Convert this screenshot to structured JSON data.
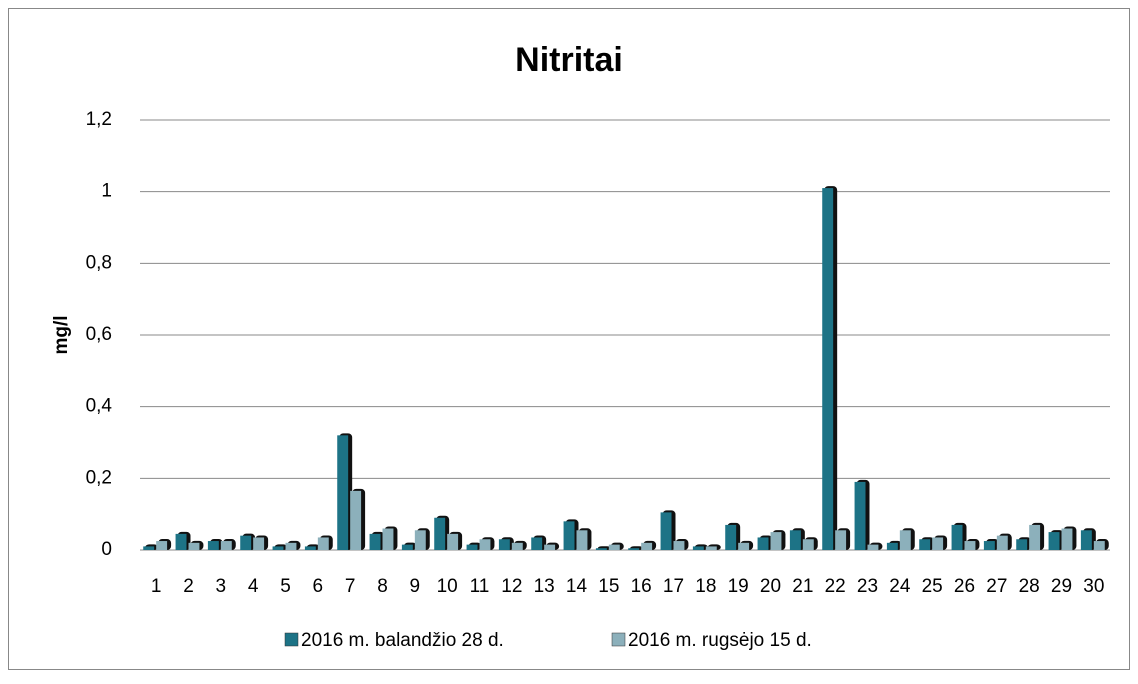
{
  "chart_data": {
    "type": "bar",
    "title": "Nitritai",
    "y_label": "mg/l",
    "categories": [
      "1",
      "2",
      "3",
      "4",
      "5",
      "6",
      "7",
      "8",
      "9",
      "10",
      "11",
      "12",
      "13",
      "14",
      "15",
      "16",
      "17",
      "18",
      "19",
      "20",
      "21",
      "22",
      "23",
      "24",
      "25",
      "26",
      "27",
      "28",
      "29",
      "30"
    ],
    "series": [
      {
        "name": "2016 m. balandžio 28 d.",
        "color": "#1d7386",
        "values": [
          0.01,
          0.045,
          0.025,
          0.04,
          0.01,
          0.01,
          0.32,
          0.045,
          0.015,
          0.09,
          0.015,
          0.03,
          0.035,
          0.08,
          0.005,
          0.005,
          0.105,
          0.01,
          0.07,
          0.035,
          0.055,
          1.01,
          0.19,
          0.02,
          0.03,
          0.07,
          0.025,
          0.03,
          0.05,
          0.055
        ]
      },
      {
        "name": "2016 m. rugsėjo 15 d.",
        "color": "#8cb0bb",
        "values": [
          0.025,
          0.02,
          0.025,
          0.035,
          0.02,
          0.035,
          0.165,
          0.06,
          0.055,
          0.045,
          0.03,
          0.02,
          0.015,
          0.055,
          0.015,
          0.02,
          0.025,
          0.01,
          0.02,
          0.05,
          0.03,
          0.055,
          0.015,
          0.055,
          0.035,
          0.025,
          0.04,
          0.07,
          0.06,
          0.025
        ]
      }
    ],
    "ylim": [
      0,
      1.2
    ],
    "yticks": [
      0,
      {
        "value": 0.2,
        "label": "0,2"
      },
      {
        "value": 0.4,
        "label": "0,4"
      },
      {
        "value": 0.6,
        "label": "0,6"
      },
      {
        "value": 0.8,
        "label": "0,8"
      },
      1,
      {
        "value": 1.2,
        "label": "1,2"
      }
    ],
    "grid": true,
    "legend": "bottom"
  }
}
